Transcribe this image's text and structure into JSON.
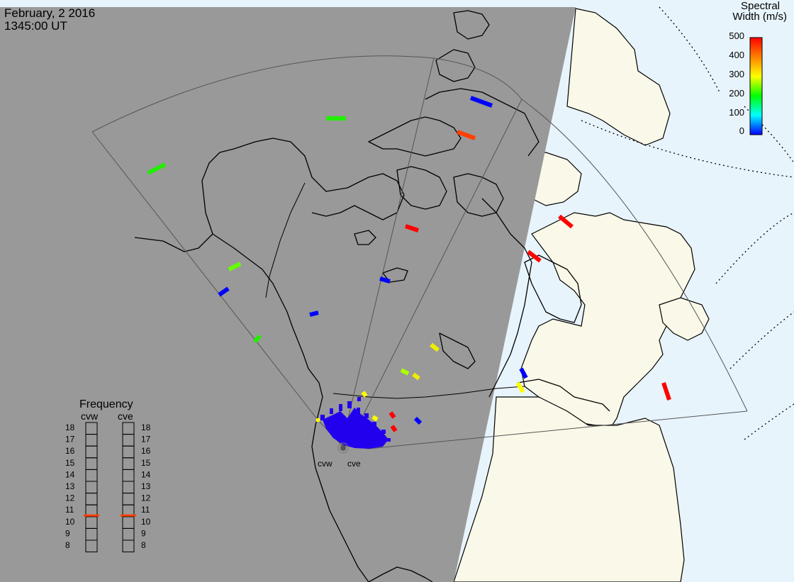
{
  "header": {
    "date": "February, 2 2016",
    "time": "1345:00 UT"
  },
  "colorbar": {
    "title_line1": "Spectral",
    "title_line2": "Width (m/s)",
    "ticks": [
      "500",
      "400",
      "300",
      "200",
      "100",
      "0"
    ],
    "colors": [
      "#ff0000",
      "#ff8000",
      "#ffff00",
      "#00ff00",
      "#00ffff",
      "#0000ff"
    ]
  },
  "frequency_panel": {
    "title": "Frequency",
    "radars": [
      {
        "code": "cvw",
        "value_mhz": 10.6
      },
      {
        "code": "cve",
        "value_mhz": 10.6
      }
    ],
    "scale": [
      "18",
      "17",
      "16",
      "15",
      "14",
      "13",
      "12",
      "11",
      "10",
      "9",
      "8"
    ],
    "marker_color": "#ff4000"
  },
  "radar_sites": [
    {
      "code": "cvw"
    },
    {
      "code": "cve"
    }
  ],
  "colors": {
    "night": "#999999",
    "day_land": "#faf8e8",
    "day_ocean": "#e8f4fb"
  }
}
